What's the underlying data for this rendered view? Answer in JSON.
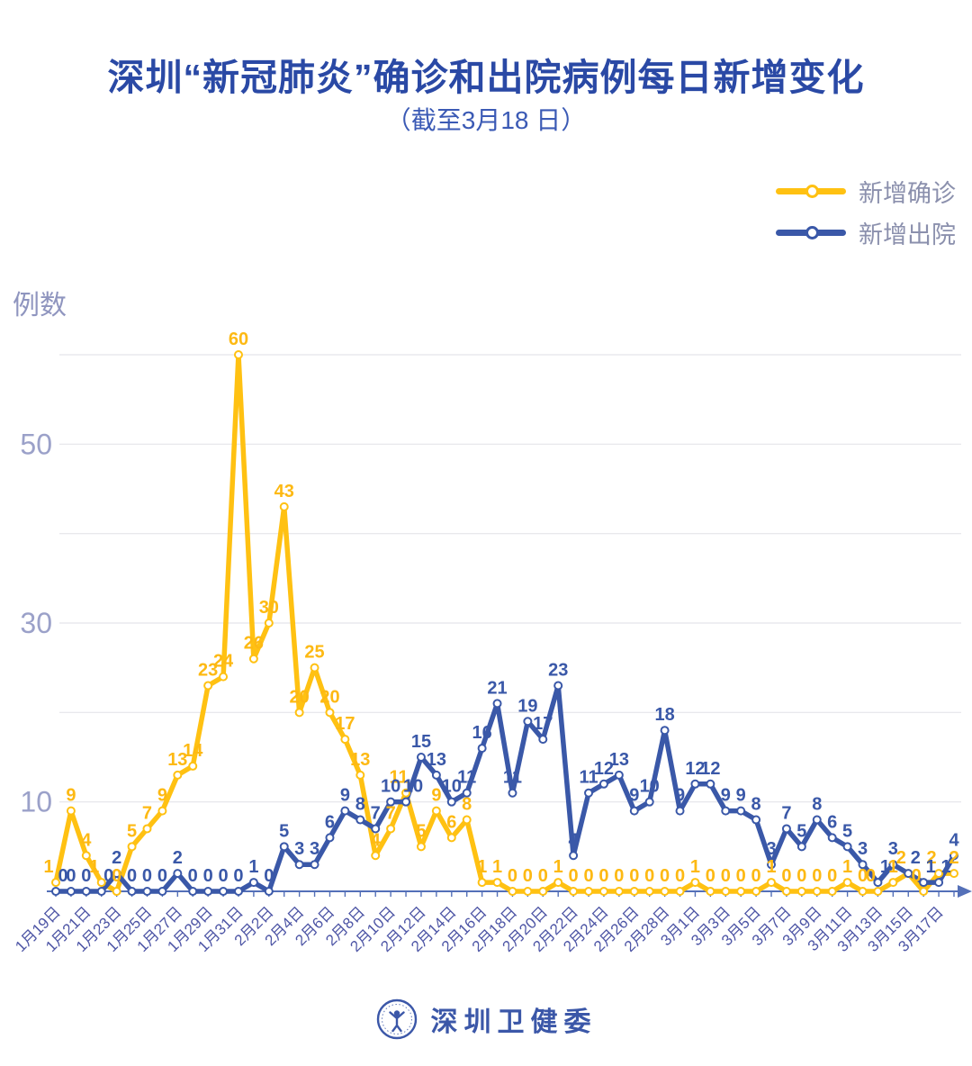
{
  "title": "深圳“新冠肺炎”确诊和出院病例每日新增变化",
  "subtitle": "（截至3月18 日）",
  "unit_label": "例数",
  "legend": [
    {
      "label": "新增确诊",
      "color": "#FFC112"
    },
    {
      "label": "新增出院",
      "color": "#3A58A8"
    }
  ],
  "footer": {
    "brand": "深圳卫健委"
  },
  "style": {
    "title_color": "#2a49a5",
    "subtitle_color": "#3b5ab5",
    "grid_color": "#e4e4e9",
    "ytick_color": "#9ba1c9",
    "xtick_color": "#4d55a5",
    "axis_color": "#5470b8",
    "legend_text_color": "#8b90ad",
    "brand_color": "#3b57a8"
  },
  "chart_data": {
    "type": "line",
    "title": "深圳“新冠肺炎”确诊和出院病例每日新增变化",
    "subtitle": "（截至3月18 日）",
    "ylabel": "例数",
    "ylim": [
      0,
      62
    ],
    "grid": true,
    "gridlines": [
      10,
      20,
      30,
      40,
      50,
      60
    ],
    "yticks_labeled": [
      10,
      30,
      50
    ],
    "legend_position": "top-right",
    "point_labels": true,
    "x_label_every": 2,
    "x": [
      "1月19日",
      "1月20日",
      "1月21日",
      "1月22日",
      "1月23日",
      "1月24日",
      "1月25日",
      "1月26日",
      "1月27日",
      "1月28日",
      "1月29日",
      "1月30日",
      "1月31日",
      "2月1日",
      "2月2日",
      "2月3日",
      "2月4日",
      "2月5日",
      "2月6日",
      "2月7日",
      "2月8日",
      "2月9日",
      "2月10日",
      "2月11日",
      "2月12日",
      "2月13日",
      "2月14日",
      "2月15日",
      "2月16日",
      "2月17日",
      "2月18日",
      "2月19日",
      "2月20日",
      "2月21日",
      "2月22日",
      "2月23日",
      "2月24日",
      "2月25日",
      "2月26日",
      "2月27日",
      "2月28日",
      "2月29日",
      "3月1日",
      "3月2日",
      "3月3日",
      "3月4日",
      "3月5日",
      "3月6日",
      "3月7日",
      "3月8日",
      "3月9日",
      "3月10日",
      "3月11日",
      "3月12日",
      "3月13日",
      "3月14日",
      "3月15日",
      "3月16日",
      "3月17日",
      "3月18日"
    ],
    "series": [
      {
        "name": "新增确诊",
        "color": "#FFC112",
        "label_color": "#FDB913",
        "values": [
          1,
          9,
          4,
          1,
          0,
          5,
          7,
          9,
          13,
          14,
          23,
          24,
          60,
          26,
          30,
          43,
          20,
          25,
          20,
          17,
          13,
          4,
          7,
          11,
          5,
          9,
          6,
          8,
          1,
          1,
          0,
          0,
          0,
          1,
          0,
          0,
          0,
          0,
          0,
          0,
          0,
          0,
          1,
          0,
          0,
          0,
          0,
          1,
          0,
          0,
          0,
          0,
          1,
          0,
          0,
          1,
          2,
          0,
          2,
          2
        ]
      },
      {
        "name": "新增出院",
        "color": "#3A58A8",
        "label_color": "#3A58A8",
        "values": [
          0,
          0,
          0,
          0,
          2,
          0,
          0,
          0,
          2,
          0,
          0,
          0,
          0,
          1,
          0,
          5,
          3,
          3,
          6,
          9,
          8,
          7,
          10,
          10,
          15,
          13,
          10,
          11,
          16,
          21,
          11,
          19,
          17,
          23,
          4,
          11,
          12,
          13,
          9,
          10,
          18,
          9,
          12,
          12,
          9,
          9,
          8,
          3,
          7,
          5,
          8,
          6,
          5,
          3,
          1,
          3,
          2,
          1,
          1,
          4
        ]
      }
    ]
  }
}
